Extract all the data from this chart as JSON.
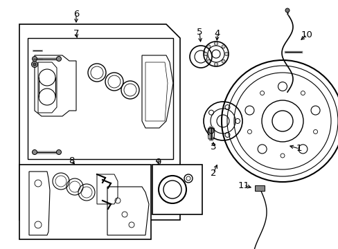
{
  "bg_color": "#ffffff",
  "lc": "#000000",
  "fig_width": 4.89,
  "fig_height": 3.6,
  "dpi": 100,
  "label_positions": {
    "1": [
      430,
      218,
      410,
      210
    ],
    "2": [
      308,
      248,
      308,
      225
    ],
    "3": [
      308,
      210,
      308,
      195
    ],
    "4": [
      310,
      55,
      312,
      80
    ],
    "5": [
      290,
      52,
      288,
      78
    ],
    "6": [
      110,
      22,
      110,
      38
    ],
    "7": [
      110,
      48,
      110,
      62
    ],
    "8": [
      103,
      230,
      110,
      238
    ],
    "9": [
      225,
      238,
      225,
      248
    ],
    "10": [
      443,
      52,
      430,
      64
    ],
    "11": [
      352,
      270,
      360,
      280
    ]
  }
}
